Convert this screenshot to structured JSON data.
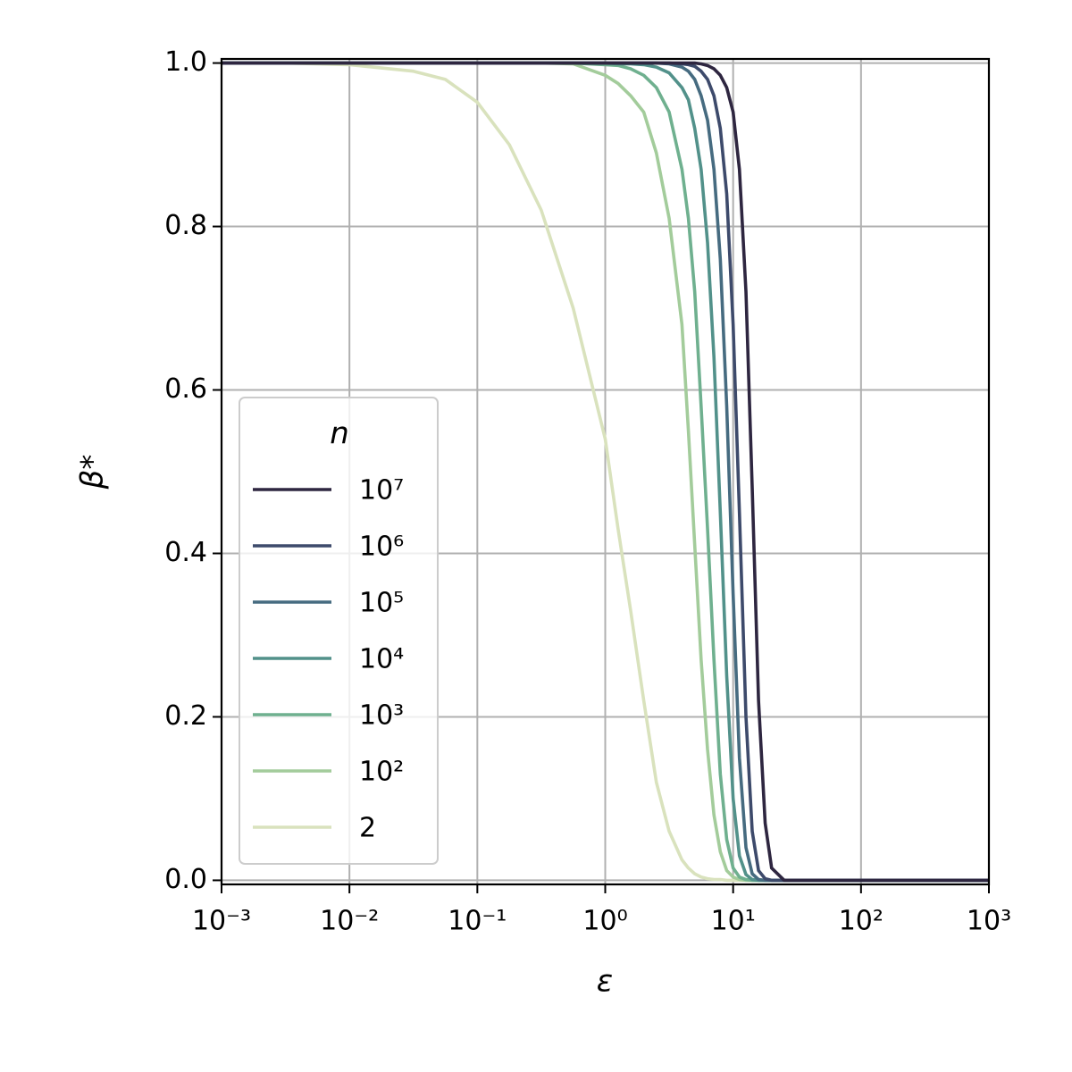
{
  "chart_data": {
    "type": "line",
    "xlabel": "ε",
    "ylabel": "β*",
    "xscale": "log",
    "grid": true,
    "legend": {
      "title": "n",
      "loc": "lower left"
    },
    "x": [
      0.001,
      0.00316,
      0.01,
      0.0316,
      0.0562,
      0.1,
      0.178,
      0.316,
      0.562,
      1,
      1.26,
      1.58,
      2.0,
      2.51,
      3.16,
      3.98,
      4.47,
      5.01,
      5.62,
      6.31,
      7.08,
      7.94,
      8.91,
      10,
      11.2,
      12.6,
      14.1,
      15.8,
      17.8,
      20,
      25.1,
      31.6,
      100,
      316,
      1000
    ],
    "series": [
      {
        "name": "10⁷",
        "color": "#2e2640",
        "values": [
          1,
          1,
          1,
          1,
          1,
          1,
          1,
          1,
          1,
          1,
          1,
          1,
          1,
          1,
          1,
          1,
          1,
          1,
          0.999,
          0.997,
          0.993,
          0.985,
          0.97,
          0.94,
          0.87,
          0.72,
          0.48,
          0.22,
          0.07,
          0.015,
          0,
          0,
          0,
          0,
          0
        ]
      },
      {
        "name": "10⁶",
        "color": "#3d4a6b",
        "values": [
          1,
          1,
          1,
          1,
          1,
          1,
          1,
          1,
          1,
          1,
          1,
          1,
          1,
          1,
          1,
          0.999,
          0.998,
          0.996,
          0.99,
          0.98,
          0.96,
          0.92,
          0.84,
          0.68,
          0.45,
          0.2,
          0.06,
          0.012,
          0.002,
          0,
          0,
          0,
          0,
          0,
          0
        ]
      },
      {
        "name": "10⁵",
        "color": "#466b80",
        "values": [
          1,
          1,
          1,
          1,
          1,
          1,
          1,
          1,
          1,
          1,
          1,
          1,
          1,
          1,
          0.999,
          0.995,
          0.99,
          0.98,
          0.96,
          0.93,
          0.87,
          0.76,
          0.58,
          0.35,
          0.15,
          0.04,
          0.008,
          0.001,
          0,
          0,
          0,
          0,
          0,
          0,
          0
        ]
      },
      {
        "name": "10⁴",
        "color": "#52918a",
        "values": [
          1,
          1,
          1,
          1,
          1,
          1,
          1,
          1,
          1,
          1,
          0.999,
          0.999,
          0.998,
          0.995,
          0.988,
          0.97,
          0.955,
          0.92,
          0.87,
          0.78,
          0.64,
          0.45,
          0.25,
          0.1,
          0.03,
          0.007,
          0.001,
          0,
          0,
          0,
          0,
          0,
          0,
          0,
          0
        ]
      },
      {
        "name": "10³",
        "color": "#6fb08f",
        "values": [
          1,
          1,
          1,
          1,
          1,
          1,
          1,
          1,
          1,
          0.998,
          0.997,
          0.993,
          0.985,
          0.97,
          0.94,
          0.87,
          0.81,
          0.72,
          0.58,
          0.43,
          0.27,
          0.13,
          0.05,
          0.015,
          0.004,
          0.001,
          0,
          0,
          0,
          0,
          0,
          0,
          0,
          0,
          0
        ]
      },
      {
        "name": "10²",
        "color": "#a3cc9b",
        "values": [
          1,
          1,
          1,
          1,
          1,
          1,
          1,
          1,
          0.999,
          0.985,
          0.975,
          0.96,
          0.94,
          0.89,
          0.81,
          0.68,
          0.55,
          0.41,
          0.27,
          0.16,
          0.08,
          0.035,
          0.012,
          0.004,
          0.001,
          0,
          0,
          0,
          0,
          0,
          0,
          0,
          0,
          0,
          0
        ]
      },
      {
        "name": "2",
        "color": "#d9e2bd",
        "values": [
          1,
          1,
          0.998,
          0.99,
          0.98,
          0.952,
          0.9,
          0.82,
          0.7,
          0.54,
          0.43,
          0.33,
          0.22,
          0.12,
          0.06,
          0.025,
          0.015,
          0.008,
          0.004,
          0.002,
          0.001,
          0.001,
          0,
          0,
          0,
          0,
          0,
          0,
          0,
          0,
          0,
          0,
          0,
          0,
          0
        ]
      }
    ],
    "xlim": [
      0.001,
      1000
    ],
    "xticks": [
      {
        "value": 0.001,
        "label": "10⁻³"
      },
      {
        "value": 0.01,
        "label": "10⁻²"
      },
      {
        "value": 0.1,
        "label": "10⁻¹"
      },
      {
        "value": 1,
        "label": "10⁰"
      },
      {
        "value": 10,
        "label": "10¹"
      },
      {
        "value": 100,
        "label": "10²"
      },
      {
        "value": 1000,
        "label": "10³"
      }
    ],
    "ylim": [
      -0.005,
      1.005
    ],
    "yticks": [
      {
        "value": 0,
        "label": "0.0"
      },
      {
        "value": 0.2,
        "label": "0.2"
      },
      {
        "value": 0.4,
        "label": "0.4"
      },
      {
        "value": 0.6,
        "label": "0.6"
      },
      {
        "value": 0.8,
        "label": "0.8"
      },
      {
        "value": 1,
        "label": "1.0"
      }
    ]
  }
}
